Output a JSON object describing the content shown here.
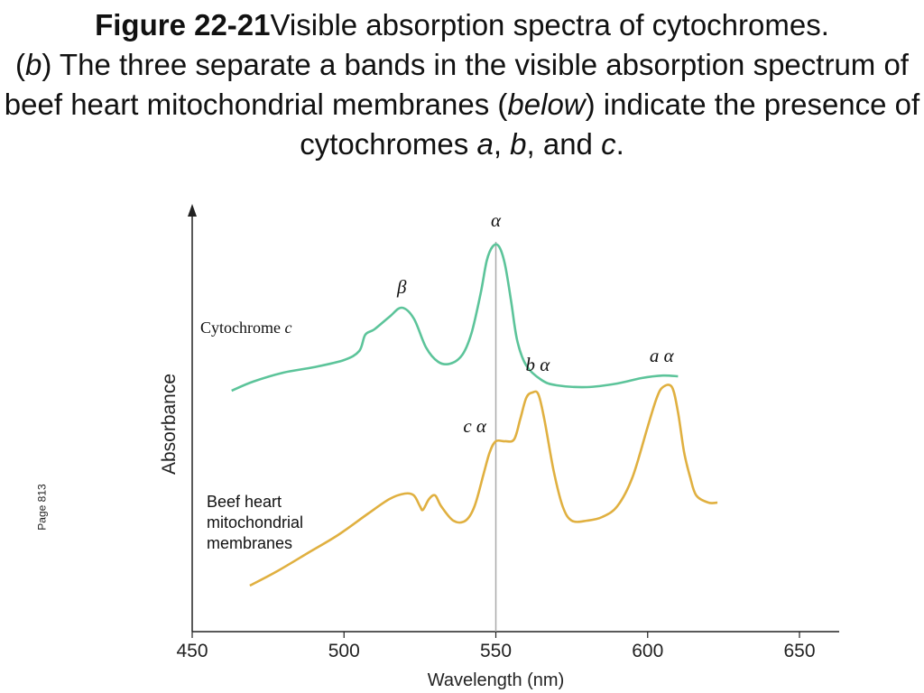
{
  "caption": {
    "figure_label": "Figure 22-21",
    "title": "Visible absorption spectra of cytochromes.",
    "part_open": "(",
    "part_letter": "b",
    "part_close": ")",
    "text_1": " The three separate a bands in the visible absorption spectrum of beef heart mitochondrial membranes (",
    "below": "below",
    "text_2": ") indicate the presence of cytochromes ",
    "cyt_a": "a",
    "sep_1": ", ",
    "cyt_b": "b",
    "text_3": ", and ",
    "cyt_c": "c",
    "text_4": "."
  },
  "side_note": "Page 813",
  "chart_data": {
    "type": "line",
    "xlabel": "Wavelength (nm)",
    "ylabel": "Absorbance",
    "xlim": [
      450,
      665
    ],
    "xticks": [
      450,
      500,
      550,
      600,
      650
    ],
    "y_units": "arbitrary (no numeric scale shown)",
    "ylim": [
      0,
      100
    ],
    "reference_line_x": 550,
    "colors": {
      "cytochrome_c": "#5cc49a",
      "membranes": "#e0b040",
      "axis": "#222222",
      "refline": "#aaaaaa"
    },
    "series": [
      {
        "name": "Cytochrome c",
        "label_lines": [
          "Cytochrome ",
          "c"
        ],
        "color": "#5cc49a",
        "points": [
          [
            463,
            60
          ],
          [
            470,
            62.5
          ],
          [
            480,
            65
          ],
          [
            490,
            66.5
          ],
          [
            500,
            68.5
          ],
          [
            505,
            71
          ],
          [
            507,
            75.5
          ],
          [
            510,
            77
          ],
          [
            515,
            80.5
          ],
          [
            519,
            83
          ],
          [
            523,
            80
          ],
          [
            527,
            72
          ],
          [
            531,
            68
          ],
          [
            535,
            67.5
          ],
          [
            539,
            70
          ],
          [
            542,
            76
          ],
          [
            545,
            87
          ],
          [
            547,
            96
          ],
          [
            549,
            100
          ],
          [
            551,
            100
          ],
          [
            553,
            95
          ],
          [
            555,
            85
          ],
          [
            557,
            74
          ],
          [
            560,
            67
          ],
          [
            565,
            63
          ],
          [
            570,
            61.5
          ],
          [
            580,
            61
          ],
          [
            590,
            62
          ],
          [
            598,
            63.5
          ],
          [
            605,
            64.2
          ],
          [
            610,
            64
          ]
        ],
        "peak_labels": [
          {
            "text": "α",
            "x": 550,
            "y": 100,
            "dx": 0,
            "dy": -22
          },
          {
            "text": "β",
            "x": 519,
            "y": 83,
            "dx": 0,
            "dy": -16
          }
        ]
      },
      {
        "name": "Beef heart mitochondrial membranes",
        "label_lines": [
          "Beef heart",
          "mitochondrial",
          "membranes"
        ],
        "color": "#e0b040",
        "points": [
          [
            469,
            6
          ],
          [
            478,
            10
          ],
          [
            488,
            15
          ],
          [
            498,
            20
          ],
          [
            508,
            26
          ],
          [
            515,
            30
          ],
          [
            520,
            31.5
          ],
          [
            523,
            31
          ],
          [
            525,
            28
          ],
          [
            526,
            27
          ],
          [
            528,
            30
          ],
          [
            530,
            31
          ],
          [
            532,
            28
          ],
          [
            536,
            24
          ],
          [
            540,
            24
          ],
          [
            543,
            28
          ],
          [
            546,
            37
          ],
          [
            548,
            43
          ],
          [
            550,
            46
          ],
          [
            553,
            46
          ],
          [
            556,
            46.5
          ],
          [
            558,
            52
          ],
          [
            560,
            58
          ],
          [
            562,
            59.5
          ],
          [
            564,
            59
          ],
          [
            566,
            52
          ],
          [
            569,
            38
          ],
          [
            572,
            28
          ],
          [
            575,
            24
          ],
          [
            580,
            24
          ],
          [
            585,
            25
          ],
          [
            590,
            28
          ],
          [
            595,
            36
          ],
          [
            600,
            50
          ],
          [
            603,
            58
          ],
          [
            605,
            61
          ],
          [
            608,
            61
          ],
          [
            610,
            54
          ],
          [
            612,
            43
          ],
          [
            614,
            36
          ],
          [
            616,
            31
          ],
          [
            620,
            29
          ],
          [
            623,
            29
          ]
        ],
        "peak_labels": [
          {
            "text": "a α",
            "x": 607,
            "y": 61,
            "dx": -8,
            "dy": -28
          },
          {
            "text": "b α",
            "x": 562,
            "y": 59.5,
            "dx": 6,
            "dy": -24
          },
          {
            "text": "c α",
            "x": 549,
            "y": 45,
            "dx": -20,
            "dy": -14
          }
        ]
      }
    ]
  }
}
